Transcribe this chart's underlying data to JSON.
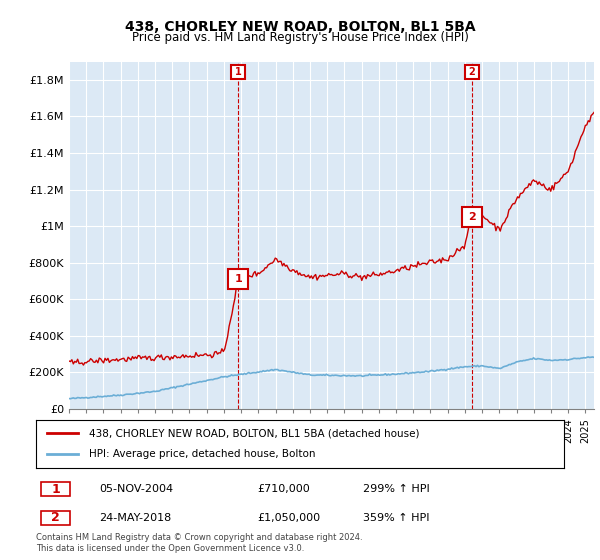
{
  "title": "438, CHORLEY NEW ROAD, BOLTON, BL1 5BA",
  "subtitle": "Price paid vs. HM Land Registry's House Price Index (HPI)",
  "background_color": "#dce9f5",
  "plot_background": "#dce9f5",
  "ylim": [
    0,
    1900000
  ],
  "yticks": [
    0,
    200000,
    400000,
    600000,
    800000,
    1000000,
    1200000,
    1400000,
    1600000,
    1800000
  ],
  "ytick_labels": [
    "£0",
    "£200K",
    "£400K",
    "£600K",
    "£800K",
    "£1M",
    "£1.2M",
    "£1.4M",
    "£1.6M",
    "£1.8M"
  ],
  "xlim_start": 1995.0,
  "xlim_end": 2025.5,
  "sale1_x": 2004.84,
  "sale1_y": 710000,
  "sale1_label": "1",
  "sale2_x": 2018.39,
  "sale2_y": 1050000,
  "sale2_label": "2",
  "hpi_color": "#6baed6",
  "sale_color": "#cc0000",
  "legend_label1": "438, CHORLEY NEW ROAD, BOLTON, BL1 5BA (detached house)",
  "legend_label2": "HPI: Average price, detached house, Bolton",
  "note1_num": "1",
  "note1_date": "05-NOV-2004",
  "note1_price": "£710,000",
  "note1_hpi": "299% ↑ HPI",
  "note2_num": "2",
  "note2_date": "24-MAY-2018",
  "note2_price": "£1,050,000",
  "note2_hpi": "359% ↑ HPI",
  "footer": "Contains HM Land Registry data © Crown copyright and database right 2024.\nThis data is licensed under the Open Government Licence v3.0."
}
